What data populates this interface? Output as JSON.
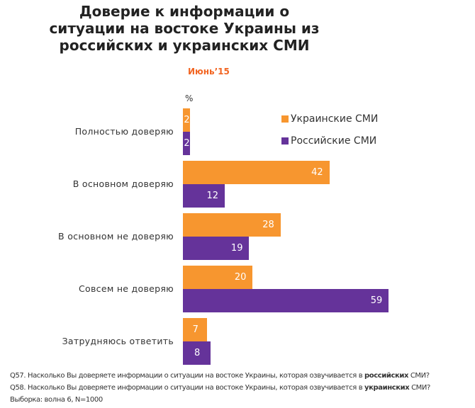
{
  "chart_data": {
    "type": "bar",
    "orientation": "horizontal",
    "title": "Доверие к информации о ситуации на востоке Украины из российских и украинских СМИ",
    "subtitle": "Июнь’15",
    "unit_label": "%",
    "categories": [
      "Полностью доверяю",
      "В основном доверяю",
      "В основном не доверяю",
      "Совсем не доверяю",
      "Затрудняюсь ответить"
    ],
    "series": [
      {
        "name": "Украинские СМИ",
        "color": "#F7962F",
        "values": [
          2,
          42,
          28,
          20,
          7
        ]
      },
      {
        "name": "Российские СМИ",
        "color": "#65339A",
        "values": [
          2,
          12,
          19,
          59,
          8
        ]
      }
    ],
    "xlim": [
      0,
      60
    ],
    "grid": false,
    "legend_position": "top-right",
    "data_labels": true
  },
  "footnotes": {
    "q57_prefix": "Q57. Насколько Вы доверяете информации о ситуации на востоке Украины, которая озвучивается в ",
    "q57_bold": "российских",
    "q57_suffix": " СМИ?",
    "q58_prefix": "Q58. Насколько Вы доверяете информации о ситуации на востоке Украины, которая озвучивается в ",
    "q58_bold": "украинских",
    "q58_suffix": " СМИ?",
    "sample": "Выборка: волна 6, N=1000"
  }
}
